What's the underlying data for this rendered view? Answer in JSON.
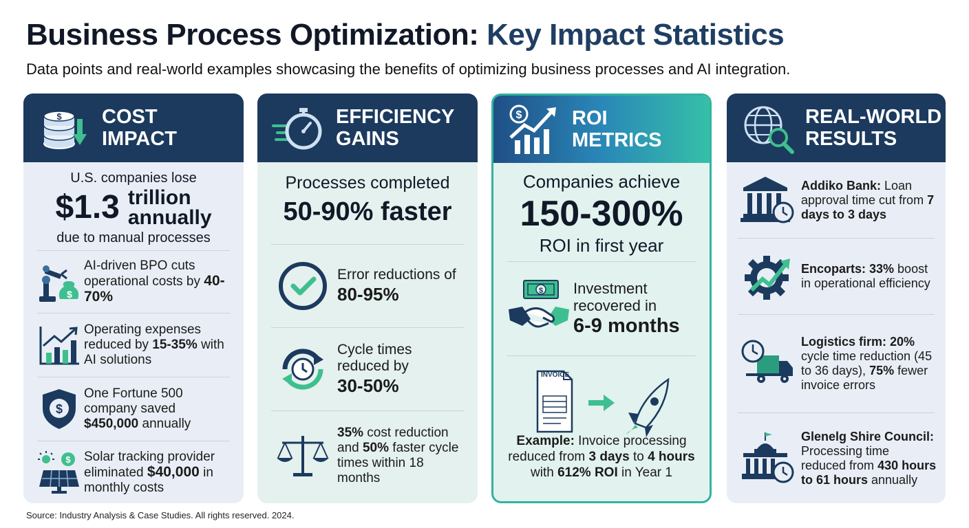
{
  "header": {
    "title_main": "Business Process Optimization: ",
    "title_accent": "Key Impact Statistics",
    "subtitle": "Data points and real-world examples showcasing the benefits of optimizing business processes and AI integration."
  },
  "colors": {
    "navy": "#1c3a5e",
    "teal": "#2a9d7f",
    "accent_border": "#32b3a0"
  },
  "cards": [
    {
      "heading_line1": "COST",
      "heading_line2": "IMPACT",
      "icon": "coins-down-arrow-icon",
      "hero": {
        "pre": "U.S. companies lose",
        "big": "$1.3",
        "big_side_1": "trillion",
        "big_side_2": "annually",
        "post": "due to manual processes"
      },
      "items": [
        {
          "icon": "robot-arm-money-bag-icon",
          "t1": "AI-driven BPO cuts operational costs by ",
          "b1": "40-70%"
        },
        {
          "icon": "bar-chart-up-icon",
          "t1": "Operating expenses reduced by ",
          "b1": "15-35%",
          "t2": " with AI solutions"
        },
        {
          "icon": "shield-dollar-icon",
          "t1": "One Fortune 500 company saved ",
          "b1": "$450,000",
          "t2": " annually"
        },
        {
          "icon": "solar-panel-dollar-icon",
          "t1": "Solar tracking provider eliminated ",
          "b1": "$40,000",
          "t2": " in monthly costs"
        }
      ]
    },
    {
      "heading_line1": "EFFICIENCY",
      "heading_line2": "GAINS",
      "icon": "stopwatch-speed-icon",
      "hero": {
        "pre": "Processes completed",
        "big": "50-90% faster"
      },
      "items": [
        {
          "icon": "check-circle-icon",
          "t1": "Error reductions of",
          "b1": "80-95%"
        },
        {
          "icon": "clock-cycle-icon",
          "t1": "Cycle times reduced by",
          "b1": "30-50%"
        },
        {
          "icon": "balance-scale-icon",
          "b1": "35%",
          "t1": " cost reduction and ",
          "b2": "50%",
          "t2": " faster cycle times within 18 months"
        }
      ]
    },
    {
      "heading_line1": "ROI",
      "heading_line2": "METRICS",
      "icon": "dollar-growth-chart-icon",
      "hero": {
        "pre": "Companies achieve",
        "big": "150-300%",
        "post": "ROI in first year"
      },
      "items": [
        {
          "icon": "handshake-money-icon",
          "t1": "Investment recovered in",
          "b1": "6-9 months"
        }
      ],
      "example": {
        "invoice_label": "INVOICE",
        "b0": "Example:",
        "t1": " Invoice processing reduced from ",
        "b1": "3 days",
        "t2": " to ",
        "b2": "4 hours",
        "t3": " with ",
        "b3": "612% ROI",
        "t4": " in Year 1"
      }
    },
    {
      "heading_line1": "REAL-WORLD",
      "heading_line2": "RESULTS",
      "icon": "globe-magnifier-icon",
      "items": [
        {
          "icon": "bank-clock-icon",
          "b1": "Addiko Bank:",
          "t1": " Loan approval time cut from ",
          "b2": "7 days to 3 days"
        },
        {
          "icon": "gear-growth-icon",
          "b1": "Encoparts: 33%",
          "t1": " boost in operational efficiency"
        },
        {
          "icon": "truck-clock-icon",
          "b1": "Logistics firm: 20%",
          "t1": " cycle time reduction (45 to 36 days), ",
          "b2": "75%",
          "t2": " fewer invoice errors"
        },
        {
          "icon": "council-building-clock-icon",
          "b1": "Glenelg Shire Council:",
          "t1": " Processing time reduced from ",
          "b2": "430 hours to 61 hours",
          "t2": " annually"
        }
      ]
    }
  ],
  "footer": {
    "source": "Source: Industry Analysis & Case Studies. All rights reserved. 2024."
  }
}
